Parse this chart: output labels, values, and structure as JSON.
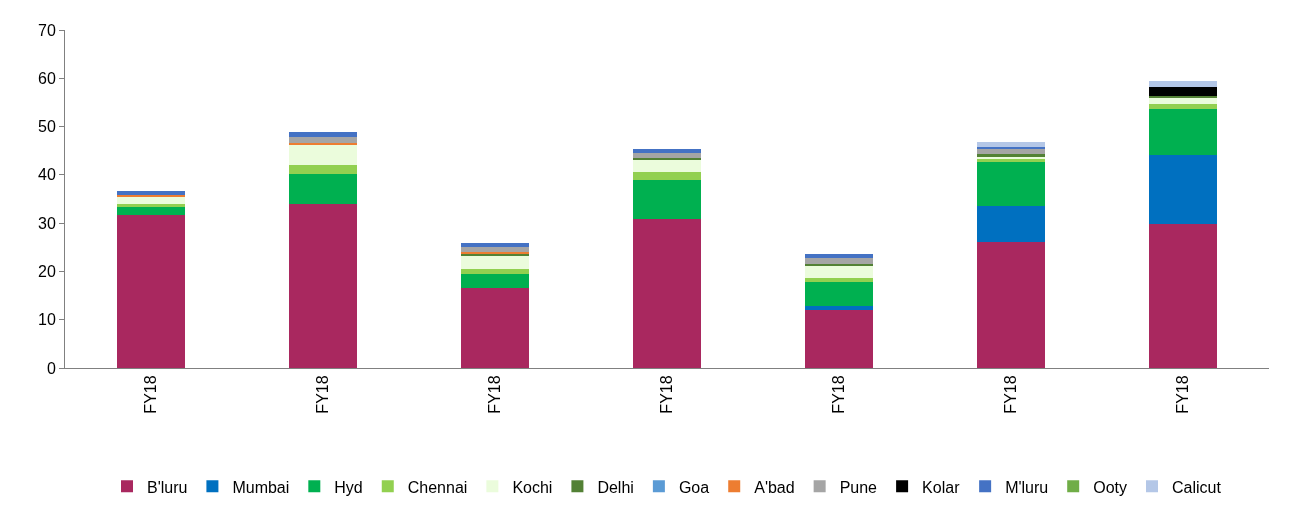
{
  "chart_data": {
    "type": "bar",
    "stacked": true,
    "categories": [
      "FY18",
      "FY18",
      "FY18",
      "FY18",
      "FY18",
      "FY18",
      "FY18"
    ],
    "ylim": [
      0,
      70
    ],
    "yticks": [
      0,
      10,
      20,
      30,
      40,
      50,
      60,
      70
    ],
    "legend": "bottom",
    "series": [
      {
        "name": "B'luru",
        "color": "#a9285f",
        "values": [
          31.7,
          33.9,
          16.6,
          30.8,
          12.0,
          26.1,
          29.9
        ]
      },
      {
        "name": "Mumbai",
        "color": "#0070c0",
        "values": [
          0,
          0,
          0,
          0,
          0.8,
          7.4,
          14.2
        ]
      },
      {
        "name": "Hyd",
        "color": "#00b050",
        "values": [
          1.7,
          6.2,
          2.9,
          8.1,
          5.1,
          9.1,
          9.5
        ]
      },
      {
        "name": "Chennai",
        "color": "#92d050",
        "values": [
          0.6,
          2.0,
          1.0,
          1.6,
          0.7,
          0.7,
          1.0
        ]
      },
      {
        "name": "Kochi",
        "color": "#ebfcdc",
        "values": [
          1.6,
          4.0,
          2.9,
          2.7,
          2.7,
          0.6,
          1.4
        ]
      },
      {
        "name": "Delhi",
        "color": "#538135",
        "values": [
          0,
          0,
          0.2,
          0.3,
          0.3,
          0.4,
          0.3
        ]
      },
      {
        "name": "Goa",
        "color": "#5b9bd5",
        "values": [
          0,
          0,
          0,
          0,
          0,
          0,
          0
        ]
      },
      {
        "name": "A'bad",
        "color": "#ed7d31",
        "values": [
          0.3,
          0.5,
          0.5,
          0,
          0,
          0,
          0
        ]
      },
      {
        "name": "Pune",
        "color": "#a5a5a5",
        "values": [
          0,
          1.2,
          0.9,
          1.0,
          1.1,
          1.2,
          0
        ]
      },
      {
        "name": "Kolar",
        "color": "#000000",
        "values": [
          0,
          0,
          0,
          0,
          0,
          0,
          1.8
        ]
      },
      {
        "name": "M'luru",
        "color": "#4472c4",
        "values": [
          0.8,
          1.0,
          0.9,
          0.9,
          1.0,
          0.2,
          0
        ]
      },
      {
        "name": "Ooty",
        "color": "#70ad47",
        "values": [
          0,
          0,
          0,
          0,
          0,
          0,
          0
        ]
      },
      {
        "name": "Calicut",
        "color": "#b4c7e7",
        "values": [
          0,
          0,
          0,
          0,
          0,
          1.2,
          1.3
        ]
      }
    ]
  }
}
